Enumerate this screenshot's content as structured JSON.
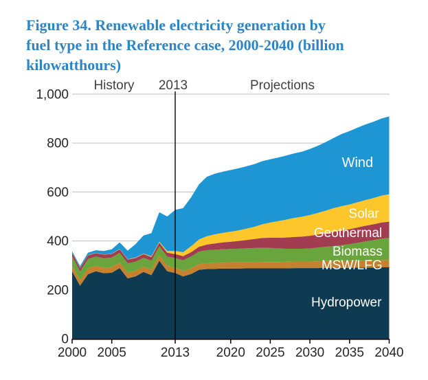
{
  "figure": {
    "title_lines": [
      "Figure 34. Renewable electricity generation by",
      "fuel type in the Reference case, 2000-2040 (billion",
      "kilowatthours)"
    ],
    "title_color": "#2d85c5"
  },
  "chart": {
    "header": {
      "history": "History",
      "boundary": "2013",
      "projections": "Projections"
    },
    "y_axis": {
      "values": [
        0,
        200,
        400,
        600,
        800,
        1000
      ],
      "labels": [
        "0",
        "200",
        "400",
        "600",
        "800",
        "1,000"
      ]
    },
    "x_axis": {
      "years": [
        2000,
        2005,
        2013,
        2020,
        2025,
        2030,
        2035,
        2040
      ],
      "labels": [
        "2000",
        "2005",
        "2013",
        "2020",
        "2025",
        "2030",
        "2035",
        "2040"
      ]
    }
  },
  "chart_data": {
    "type": "area",
    "stacked": true,
    "title": "Figure 34. Renewable electricity generation by fuel type in the Reference case, 2000-2040 (billion kilowatthours)",
    "unit": "billion kilowatthours",
    "xlim": [
      2000,
      2040
    ],
    "ylim": [
      0,
      1000
    ],
    "grid": "horizontal",
    "gridline_color": "#c9c9c9",
    "boundary_year": 2013,
    "x": [
      2000,
      2001,
      2002,
      2003,
      2004,
      2005,
      2006,
      2007,
      2008,
      2009,
      2010,
      2011,
      2012,
      2013,
      2014,
      2015,
      2016,
      2017,
      2018,
      2019,
      2020,
      2021,
      2022,
      2023,
      2024,
      2025,
      2026,
      2027,
      2028,
      2029,
      2030,
      2031,
      2032,
      2033,
      2034,
      2035,
      2036,
      2037,
      2038,
      2039,
      2040
    ],
    "series": [
      {
        "name": "Hydropower",
        "color": "#0e3a52",
        "label_at": [
          2034.6,
          149
        ],
        "label_size": 19,
        "values": [
          276,
          217,
          264,
          276,
          268,
          270,
          289,
          247,
          255,
          273,
          260,
          319,
          276,
          269,
          255,
          265,
          282,
          285,
          286,
          287,
          287,
          287,
          288,
          288,
          288,
          288,
          288,
          288,
          289,
          289,
          289,
          289,
          290,
          290,
          290,
          290,
          291,
          291,
          291,
          292,
          292
        ]
      },
      {
        "name": "MSW/LFG",
        "color": "#c5812e",
        "label_at": [
          2035.3,
          301
        ],
        "label_size": 19,
        "values": [
          23,
          23,
          23,
          23,
          23,
          23,
          23,
          23,
          23,
          22,
          22,
          22,
          22,
          21,
          22,
          23,
          23,
          24,
          24,
          24,
          25,
          25,
          25,
          25,
          26,
          26,
          26,
          27,
          27,
          27,
          27,
          28,
          28,
          28,
          28,
          29,
          29,
          29,
          29,
          30,
          30
        ]
      },
      {
        "name": "Biomass",
        "color": "#69a43c",
        "label_at": [
          2036,
          357
        ],
        "label_size": 19,
        "values": [
          38,
          35,
          39,
          37,
          38,
          39,
          39,
          39,
          37,
          36,
          37,
          37,
          38,
          40,
          44,
          48,
          51,
          53,
          54,
          55,
          55,
          56,
          57,
          58,
          58,
          57,
          55,
          53,
          52,
          52,
          53,
          56,
          58,
          61,
          65,
          68,
          72,
          78,
          83,
          87,
          90
        ]
      },
      {
        "name": "Geothermal",
        "color": "#a23c51",
        "label_at": [
          2034.8,
          433
        ],
        "label_size": 19,
        "values": [
          14,
          14,
          15,
          14,
          15,
          15,
          15,
          15,
          15,
          15,
          15,
          15,
          16,
          16,
          17,
          18,
          20,
          23,
          26,
          28,
          30,
          32,
          34,
          37,
          40,
          42,
          44,
          46,
          48,
          50,
          52,
          53,
          55,
          58,
          60,
          61,
          63,
          64,
          65,
          66,
          67
        ]
      },
      {
        "name": "Solar",
        "color": "#fdc62b",
        "label_at": [
          2036.8,
          511
        ],
        "label_size": 19,
        "values": [
          1,
          1,
          1,
          1,
          1,
          1,
          1,
          1,
          2,
          2,
          3,
          4,
          7,
          13,
          16,
          24,
          30,
          34,
          37,
          39,
          41,
          43,
          46,
          50,
          56,
          62,
          68,
          73,
          78,
          81,
          85,
          89,
          93,
          97,
          99,
          101,
          103,
          105,
          107,
          110,
          112
        ]
      },
      {
        "name": "Wind",
        "color": "#1e96d4",
        "label_at": [
          2036,
          719
        ],
        "label_size": 20,
        "values": [
          6,
          7,
          10,
          11,
          14,
          18,
          27,
          35,
          55,
          74,
          95,
          120,
          141,
          168,
          180,
          200,
          225,
          243,
          248,
          250,
          252,
          254,
          255,
          256,
          258,
          259,
          260,
          262,
          264,
          266,
          270,
          274,
          280,
          287,
          295,
          300,
          305,
          309,
          312,
          315,
          318
        ]
      }
    ]
  }
}
